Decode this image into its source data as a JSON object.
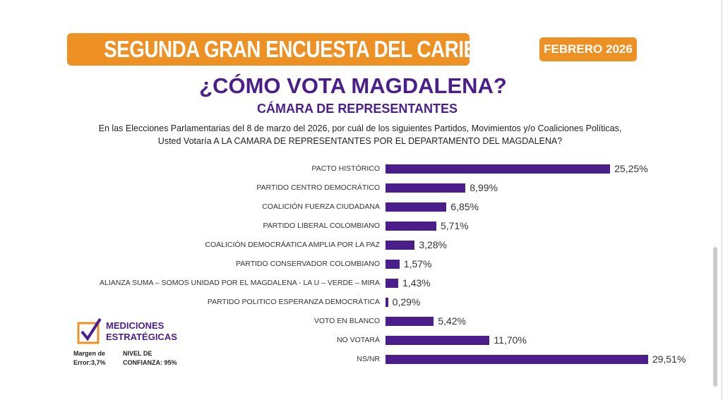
{
  "header": {
    "banner": "SEGUNDA GRAN ENCUESTA DEL CARIBE",
    "date": "FEBRERO 2026",
    "title": "¿CÓMO VOTA MAGDALENA?",
    "subtitle": "CÁMARA DE REPRESENTANTES",
    "question_line1": "En las Elecciones Parlamentarias del 8 de marzo del 2026, por cuál de los siguientes Partidos, Movimientos y/o Coaliciones Políticas,",
    "question_line2": "Usted Votaría A LA CAMARA DE REPRESENTANTES POR EL DEPARTAMENTO DEL MAGDALENA?"
  },
  "footer": {
    "logo_line1": "MEDICIONES",
    "logo_line2": "ESTRATÉGICAS",
    "margin_line1": "Margen de",
    "margin_line2": "Error:3,7%",
    "conf_line1": "NIVEL DE",
    "conf_line2": "CONFIANZA: 95%"
  },
  "colors": {
    "orange": "#EE9125",
    "purple": "#4A1F8C"
  },
  "chart_data": {
    "type": "bar",
    "orientation": "horizontal",
    "categories": [
      "PACTO HISTÓRICO",
      "PARTIDO CENTRO DEMOCRÁTICO",
      "COALICIÓN FUERZA CIUDADANA",
      "PARTIDO LIBERAL COLOMBIANO",
      "COALICIÓN DEMOCRÁATICA AMPLIA POR LA PAZ",
      "PARTIDO CONSERVADOR COLOMBIANO",
      "ALIANZA SUMA – SOMOS UNIDAD POR EL MAGDALENA - LA U – VERDE – MIRA",
      "PARTIDO POLITICO ESPERANZA DEMOCRÁTICA",
      "VOTO EN BLANCO",
      "NO VOTARÁ",
      "NS/NR"
    ],
    "values": [
      25.25,
      8.99,
      6.85,
      5.71,
      3.28,
      1.57,
      1.43,
      0.29,
      5.42,
      11.7,
      29.51
    ],
    "data_labels": [
      "25,25%",
      "8,99%",
      "6,85%",
      "5,71%",
      "3,28%",
      "1,57%",
      "1,43%",
      "0,29%",
      "5,42%",
      "11,70%",
      "29,51%"
    ],
    "grid": false
  }
}
